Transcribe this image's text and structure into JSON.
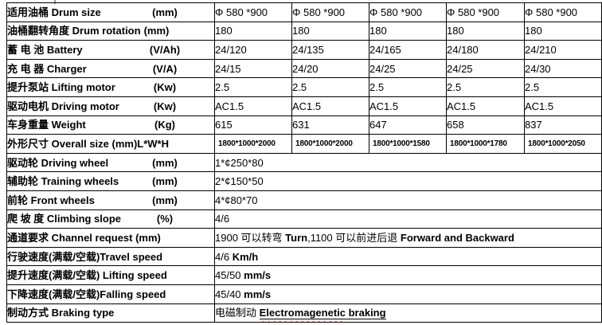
{
  "colors": {
    "border": "#000000",
    "text": "#000000",
    "spellcheck_wavy": "#ff2400"
  },
  "table": {
    "rows": [
      {
        "label_zh": "适用油桶 ",
        "label_en": "Drum size",
        "unit": "(mm)",
        "unit_tabbed": true,
        "values": [
          "Φ 580 *900",
          "Φ 580 *900",
          "Φ 580 *900",
          "Φ 580 *900",
          "Φ 580 *900"
        ]
      },
      {
        "label_zh": "油桶翻转角度 ",
        "label_en": "Drum rotation",
        "unit": "(mm)",
        "unit_tabbed": false,
        "values": [
          "180",
          "180",
          "180",
          "180",
          "180"
        ]
      },
      {
        "label_zh": "蓄 电 池 ",
        "label_en": "Battery",
        "unit": "(V/Ah)",
        "unit_tabbed": true,
        "values": [
          "24/120",
          "24/135",
          "24/165",
          "24/180",
          "24/210"
        ]
      },
      {
        "label_zh": "充 电 器 ",
        "label_en": "Charger",
        "unit": "(V/A)",
        "unit_tabbed": true,
        "values": [
          "24/15",
          "24/20",
          "24/25",
          "24/25",
          "24/30"
        ]
      },
      {
        "label_zh": "提升泵站 ",
        "label_en": "Lifting motor",
        "unit": "(Kw)",
        "unit_tabbed": true,
        "values": [
          "2.5",
          "2.5",
          "2.5",
          "2.5",
          "2.5"
        ]
      },
      {
        "label_zh": "驱动电机 ",
        "label_en": "Driving motor",
        "unit": "(Kw)",
        "unit_tabbed": true,
        "values": [
          "AC1.5",
          "AC1.5",
          "AC1.5",
          "AC1.5",
          "AC1.5"
        ]
      },
      {
        "label_zh": "车身重量 ",
        "label_en": "Weight",
        "unit": "(Kg)",
        "unit_tabbed": true,
        "values": [
          "615",
          "631",
          "647",
          "658",
          "837"
        ]
      },
      {
        "label_zh": "外形尺寸 ",
        "label_en": "Overall size (mm)L*W*H",
        "unit": "",
        "unit_tabbed": false,
        "small_values": true,
        "values": [
          "1800*1000*2000",
          "1800*1000*2000",
          "1800*1000*1580",
          "1800*1000*1780",
          "1800*1000*2050"
        ]
      },
      {
        "label_zh": "驱动轮 ",
        "label_en": "Driving wheel",
        "unit": "(mm)",
        "unit_tabbed": true,
        "segments": [
          {
            "t": "1*¢250*80"
          }
        ]
      },
      {
        "label_zh": "辅助轮 ",
        "label_en": "Training wheels",
        "unit": "(mm)",
        "unit_tabbed": true,
        "segments": [
          {
            "t": "2*¢150*50"
          }
        ]
      },
      {
        "label_zh": "前轮 ",
        "label_en": "Front wheels",
        "unit": "(mm)",
        "unit_tabbed": true,
        "segments": [
          {
            "t": "4*¢80*70"
          }
        ]
      },
      {
        "label_zh": "爬 坡 度 ",
        "label_en": "Climbing slope",
        "unit": "(%)",
        "unit_tabbed": true,
        "segments": [
          {
            "t": "4/6"
          }
        ]
      },
      {
        "label_zh": "通道要求 ",
        "label_en": "Channel request (mm)",
        "unit": "",
        "unit_tabbed": false,
        "segments": [
          {
            "t": "1900 可以转弯 "
          },
          {
            "t": "Turn",
            "b": true
          },
          {
            "t": ",1100 可以前进后退  "
          },
          {
            "t": "Forward and Backward",
            "b": true
          }
        ]
      },
      {
        "label_zh": "行驶速度(满载/空载)",
        "label_en": "Travel speed",
        "unit": "",
        "unit_tabbed": false,
        "segments": [
          {
            "t": "4/6 "
          },
          {
            "t": "Km/h",
            "b": true
          }
        ]
      },
      {
        "label_zh": "提升速度(满载/空载) ",
        "label_en": "Lifting speed",
        "unit": "",
        "unit_tabbed": false,
        "segments": [
          {
            "t": "45/50 "
          },
          {
            "t": "mm/s",
            "b": true
          }
        ]
      },
      {
        "label_zh": "下降速度(满载/空载)",
        "label_en": "Falling speed",
        "unit": "",
        "unit_tabbed": false,
        "segments": [
          {
            "t": "45/40 "
          },
          {
            "t": "mm/s",
            "b": true
          }
        ]
      },
      {
        "label_zh": "制动方式 ",
        "label_en": "Braking type",
        "unit": "",
        "unit_tabbed": false,
        "segments": [
          {
            "t": "电磁制动 "
          },
          {
            "t": "Electromagenetic",
            "b": true,
            "u": true,
            "w": true
          },
          {
            "t": " braking",
            "b": true,
            "u": true
          }
        ]
      }
    ]
  }
}
